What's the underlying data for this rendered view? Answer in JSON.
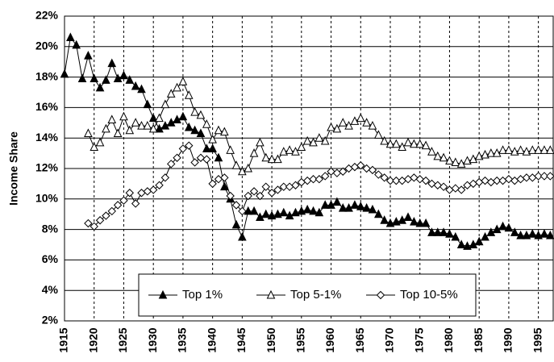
{
  "chart_data": {
    "type": "line",
    "ylabel": "Income Share",
    "x": [
      1915,
      1916,
      1917,
      1918,
      1919,
      1920,
      1921,
      1922,
      1923,
      1924,
      1925,
      1926,
      1927,
      1928,
      1929,
      1930,
      1931,
      1932,
      1933,
      1934,
      1935,
      1936,
      1937,
      1938,
      1939,
      1940,
      1941,
      1942,
      1943,
      1944,
      1945,
      1946,
      1947,
      1948,
      1949,
      1950,
      1951,
      1952,
      1953,
      1954,
      1955,
      1956,
      1957,
      1958,
      1959,
      1960,
      1961,
      1962,
      1963,
      1964,
      1965,
      1966,
      1967,
      1968,
      1969,
      1970,
      1971,
      1972,
      1973,
      1974,
      1975,
      1976,
      1977,
      1978,
      1979,
      1980,
      1981,
      1982,
      1983,
      1984,
      1985,
      1986,
      1987,
      1988,
      1989,
      1990,
      1991,
      1992,
      1993,
      1994,
      1995,
      1996,
      1997
    ],
    "series": [
      {
        "name": "Top 1%",
        "color": "#000000",
        "marker": "triangle-filled",
        "values": [
          18.2,
          20.6,
          20.1,
          17.9,
          19.4,
          17.9,
          17.3,
          17.8,
          18.9,
          17.9,
          18.1,
          17.8,
          17.4,
          17.2,
          16.2,
          15.3,
          14.6,
          14.8,
          15.0,
          15.2,
          15.4,
          14.7,
          14.5,
          14.3,
          13.3,
          13.3,
          12.7,
          10.8,
          10.0,
          8.3,
          7.5,
          9.2,
          9.2,
          8.8,
          9.0,
          8.9,
          9.0,
          9.1,
          8.9,
          9.1,
          9.2,
          9.3,
          9.2,
          9.1,
          9.6,
          9.6,
          9.8,
          9.4,
          9.4,
          9.6,
          9.5,
          9.4,
          9.3,
          9.0,
          8.6,
          8.4,
          8.5,
          8.6,
          8.8,
          8.5,
          8.4,
          8.4,
          7.8,
          7.8,
          7.8,
          7.7,
          7.5,
          7.0,
          6.9,
          7.0,
          7.2,
          7.5,
          7.8,
          8.0,
          8.2,
          8.1,
          7.8,
          7.6,
          7.6,
          7.7,
          7.6,
          7.7,
          7.6
        ]
      },
      {
        "name": "Top 5-1%",
        "color": "#000000",
        "marker": "triangle-open",
        "values": [
          null,
          null,
          null,
          null,
          14.3,
          13.4,
          13.7,
          14.6,
          15.2,
          14.3,
          15.4,
          14.5,
          15.0,
          14.8,
          14.8,
          14.6,
          15.3,
          16.2,
          16.9,
          17.3,
          17.7,
          16.8,
          15.7,
          15.5,
          14.9,
          13.9,
          14.5,
          14.4,
          13.2,
          12.2,
          11.8,
          12.0,
          13.0,
          13.7,
          12.7,
          12.6,
          12.6,
          13.1,
          13.2,
          13.1,
          13.4,
          13.8,
          13.7,
          14.0,
          13.8,
          14.7,
          14.6,
          15.0,
          14.8,
          15.1,
          15.3,
          15.0,
          14.8,
          14.2,
          13.8,
          13.6,
          13.6,
          13.4,
          13.7,
          13.6,
          13.6,
          13.5,
          13.1,
          12.8,
          12.7,
          12.5,
          12.4,
          12.3,
          12.5,
          12.6,
          12.8,
          12.9,
          13.0,
          13.0,
          13.2,
          13.2,
          13.1,
          13.2,
          13.1,
          13.2,
          13.2,
          13.2,
          13.2
        ]
      },
      {
        "name": "Top 10-5%",
        "color": "#000000",
        "marker": "diamond-open",
        "values": [
          null,
          null,
          null,
          null,
          8.4,
          8.2,
          8.6,
          8.9,
          9.2,
          9.6,
          9.9,
          10.4,
          9.7,
          10.4,
          10.5,
          10.6,
          10.9,
          11.4,
          12.3,
          12.7,
          13.3,
          13.5,
          12.4,
          12.7,
          12.6,
          11.0,
          11.3,
          11.4,
          10.2,
          9.6,
          9.2,
          10.2,
          10.5,
          10.2,
          10.8,
          10.4,
          10.6,
          10.8,
          10.8,
          10.9,
          11.1,
          11.2,
          11.3,
          11.3,
          11.5,
          11.8,
          11.7,
          11.8,
          12.0,
          12.1,
          12.2,
          12.0,
          11.9,
          11.6,
          11.4,
          11.2,
          11.2,
          11.2,
          11.3,
          11.4,
          11.3,
          11.2,
          11.0,
          10.9,
          10.8,
          10.6,
          10.7,
          10.6,
          10.9,
          11.0,
          11.1,
          11.2,
          11.1,
          11.2,
          11.2,
          11.3,
          11.2,
          11.3,
          11.4,
          11.4,
          11.5,
          11.5,
          11.5
        ]
      }
    ],
    "xlim": [
      1915,
      1997.5
    ],
    "xticks": [
      1915,
      1920,
      1925,
      1930,
      1935,
      1940,
      1945,
      1950,
      1955,
      1960,
      1965,
      1970,
      1975,
      1980,
      1985,
      1990,
      1995
    ],
    "ylim": [
      2,
      22
    ],
    "yticks": [
      {
        "value": 2,
        "label": "2%"
      },
      {
        "value": 4,
        "label": "4%"
      },
      {
        "value": 6,
        "label": "6%"
      },
      {
        "value": 8,
        "label": "8%"
      },
      {
        "value": 10,
        "label": "10%"
      },
      {
        "value": 12,
        "label": "12%"
      },
      {
        "value": 14,
        "label": "14%"
      },
      {
        "value": 16,
        "label": "16%"
      },
      {
        "value": 18,
        "label": "18%"
      },
      {
        "value": 20,
        "label": "20%"
      },
      {
        "value": 22,
        "label": "22%"
      }
    ],
    "grid": true,
    "legend": "bottom"
  }
}
